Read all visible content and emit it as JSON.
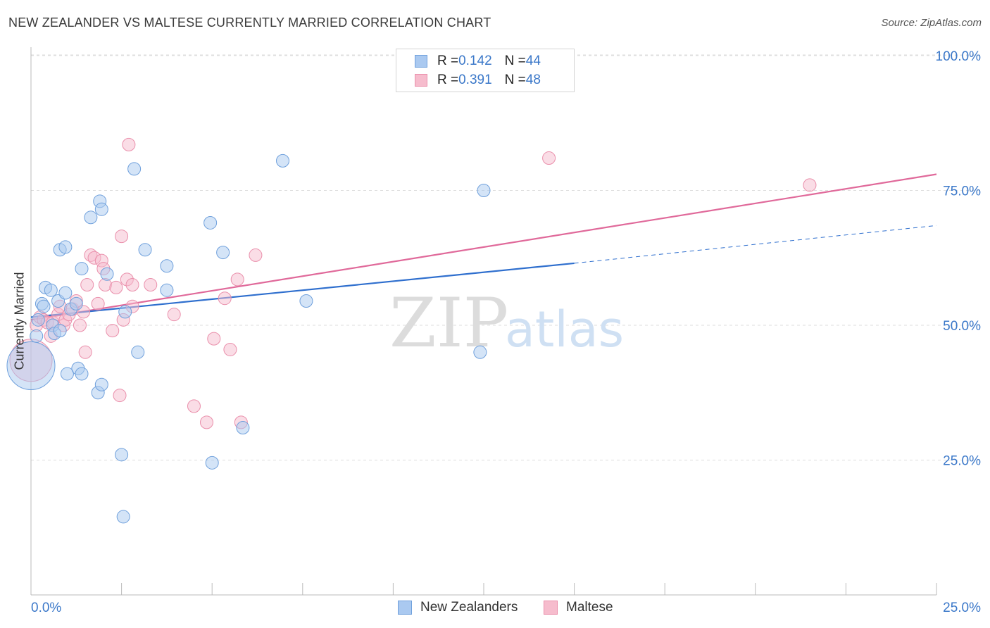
{
  "title": "NEW ZEALANDER VS MALTESE CURRENTLY MARRIED CORRELATION CHART",
  "source": "Source: ZipAtlas.com",
  "legend": {
    "rows": [
      {
        "r_label": "R = ",
        "r_value": "0.142",
        "n_label": "N = ",
        "n_value": "44"
      },
      {
        "r_label": "R = ",
        "r_value": "0.391",
        "n_label": "N = ",
        "n_value": "48"
      }
    ]
  },
  "bottom_legend": [
    "New Zealanders",
    "Maltese"
  ],
  "colors": {
    "blue_fill": "#aac9f0",
    "blue_stroke": "#6fa0dc",
    "blue_line": "#2f6fce",
    "pink_fill": "#f6bccd",
    "pink_stroke": "#ea8fab",
    "pink_line": "#e0699a",
    "tick_label": "#3b78c9",
    "grid": "#dddddd"
  },
  "chart_data": {
    "type": "scatter",
    "title": "NEW ZEALANDER VS MALTESE CURRENTLY MARRIED CORRELATION CHART",
    "xlabel": "",
    "ylabel": "Currently Married",
    "xlim": [
      0,
      25
    ],
    "ylim": [
      0,
      105
    ],
    "x_tick_labels": [
      {
        "value": 0,
        "label": "0.0%"
      },
      {
        "value": 25,
        "label": "25.0%"
      }
    ],
    "y_tick_labels": [
      {
        "value": 25,
        "label": "25.0%"
      },
      {
        "value": 50,
        "label": "50.0%"
      },
      {
        "value": 75,
        "label": "75.0%"
      },
      {
        "value": 100,
        "label": "100.0%"
      }
    ],
    "watermark": {
      "zip": "ZIP",
      "atlas": "atlas"
    },
    "series": [
      {
        "name": "New Zealanders",
        "r": 0.142,
        "n": 44,
        "trend": {
          "x0": 0,
          "y0": 51.5,
          "x1": 15,
          "y1": 61.5,
          "dashed_to_x": 25,
          "dashed_to_y": 68.5
        },
        "points": [
          {
            "x": 0.0,
            "y": 42.5,
            "size": 34
          },
          {
            "x": 0.15,
            "y": 48.0
          },
          {
            "x": 0.2,
            "y": 51.0
          },
          {
            "x": 0.3,
            "y": 54.0
          },
          {
            "x": 0.35,
            "y": 53.5
          },
          {
            "x": 0.4,
            "y": 57.0
          },
          {
            "x": 0.55,
            "y": 56.5
          },
          {
            "x": 0.6,
            "y": 50.0
          },
          {
            "x": 0.65,
            "y": 48.5
          },
          {
            "x": 0.75,
            "y": 54.5
          },
          {
            "x": 0.8,
            "y": 49.0
          },
          {
            "x": 0.8,
            "y": 64.0
          },
          {
            "x": 0.95,
            "y": 64.5
          },
          {
            "x": 0.95,
            "y": 56.0
          },
          {
            "x": 1.0,
            "y": 41.0
          },
          {
            "x": 1.1,
            "y": 53.0
          },
          {
            "x": 1.25,
            "y": 54.0
          },
          {
            "x": 1.3,
            "y": 42.0
          },
          {
            "x": 1.4,
            "y": 41.0
          },
          {
            "x": 1.4,
            "y": 60.5
          },
          {
            "x": 1.65,
            "y": 70.0
          },
          {
            "x": 1.85,
            "y": 37.5
          },
          {
            "x": 1.9,
            "y": 73.0
          },
          {
            "x": 1.95,
            "y": 39.0
          },
          {
            "x": 1.95,
            "y": 71.5
          },
          {
            "x": 2.1,
            "y": 59.5
          },
          {
            "x": 2.5,
            "y": 26.0
          },
          {
            "x": 2.55,
            "y": 14.5
          },
          {
            "x": 2.6,
            "y": 52.5
          },
          {
            "x": 2.85,
            "y": 79.0
          },
          {
            "x": 2.95,
            "y": 45.0
          },
          {
            "x": 3.15,
            "y": 64.0
          },
          {
            "x": 3.75,
            "y": 56.5
          },
          {
            "x": 3.75,
            "y": 61.0
          },
          {
            "x": 4.95,
            "y": 69.0
          },
          {
            "x": 5.0,
            "y": 24.5
          },
          {
            "x": 5.3,
            "y": 63.5
          },
          {
            "x": 5.85,
            "y": 31.0
          },
          {
            "x": 6.95,
            "y": 80.5
          },
          {
            "x": 7.6,
            "y": 54.5
          },
          {
            "x": 12.4,
            "y": 45.0
          },
          {
            "x": 12.5,
            "y": 75.0
          }
        ]
      },
      {
        "name": "Maltese",
        "r": 0.391,
        "n": 48,
        "trend": {
          "x0": 0,
          "y0": 51.0,
          "x1": 25,
          "y1": 78.0
        },
        "points": [
          {
            "x": 0.0,
            "y": 43.5,
            "size": 30
          },
          {
            "x": 0.15,
            "y": 50.0
          },
          {
            "x": 0.25,
            "y": 51.5
          },
          {
            "x": 0.35,
            "y": 51.0
          },
          {
            "x": 0.45,
            "y": 50.5
          },
          {
            "x": 0.55,
            "y": 48.0
          },
          {
            "x": 0.6,
            "y": 50.5
          },
          {
            "x": 0.75,
            "y": 52.0
          },
          {
            "x": 0.8,
            "y": 53.5
          },
          {
            "x": 0.9,
            "y": 50.0
          },
          {
            "x": 0.95,
            "y": 51.0
          },
          {
            "x": 1.05,
            "y": 52.0
          },
          {
            "x": 1.15,
            "y": 53.0
          },
          {
            "x": 1.25,
            "y": 54.5
          },
          {
            "x": 1.35,
            "y": 50.0
          },
          {
            "x": 1.45,
            "y": 52.5
          },
          {
            "x": 1.5,
            "y": 45.0
          },
          {
            "x": 1.55,
            "y": 57.5
          },
          {
            "x": 1.65,
            "y": 63.0
          },
          {
            "x": 1.75,
            "y": 62.5
          },
          {
            "x": 1.85,
            "y": 54.0
          },
          {
            "x": 1.95,
            "y": 62.0
          },
          {
            "x": 2.0,
            "y": 60.5
          },
          {
            "x": 2.05,
            "y": 57.5
          },
          {
            "x": 2.25,
            "y": 49.0
          },
          {
            "x": 2.35,
            "y": 57.0
          },
          {
            "x": 2.45,
            "y": 37.0
          },
          {
            "x": 2.5,
            "y": 66.5
          },
          {
            "x": 2.55,
            "y": 51.0
          },
          {
            "x": 2.65,
            "y": 58.5
          },
          {
            "x": 2.7,
            "y": 83.5
          },
          {
            "x": 2.8,
            "y": 57.5
          },
          {
            "x": 2.8,
            "y": 53.5
          },
          {
            "x": 3.3,
            "y": 57.5
          },
          {
            "x": 3.95,
            "y": 52.0
          },
          {
            "x": 4.5,
            "y": 35.0
          },
          {
            "x": 4.85,
            "y": 32.0
          },
          {
            "x": 5.05,
            "y": 47.5
          },
          {
            "x": 5.35,
            "y": 55.0
          },
          {
            "x": 5.5,
            "y": 45.5
          },
          {
            "x": 5.7,
            "y": 58.5
          },
          {
            "x": 5.8,
            "y": 32.0
          },
          {
            "x": 6.2,
            "y": 63.0
          },
          {
            "x": 14.3,
            "y": 81.0
          },
          {
            "x": 21.5,
            "y": 76.0
          }
        ]
      }
    ]
  }
}
